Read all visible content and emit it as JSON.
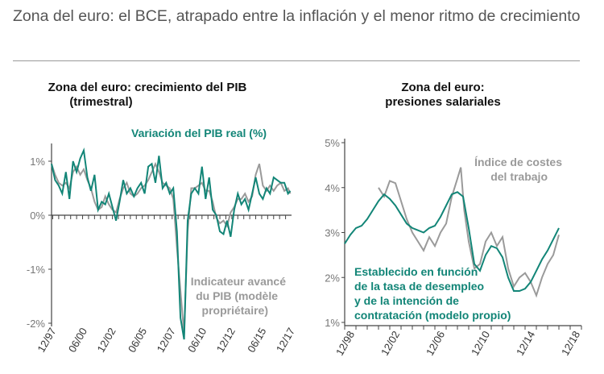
{
  "main_title": "Zona del euro: el BCE, atrapado entre la inflación y el menor ritmo de crecimiento",
  "colors": {
    "teal": "#128577",
    "gray": "#9a9a9a",
    "axis": "#444444",
    "text": "#555555"
  },
  "chart_data": [
    {
      "type": "line",
      "title_line1": "Zona del euro: crecimiento del PIB",
      "title_line2": "(trimestral)",
      "yticks": [
        "1%",
        "0%",
        "-1%",
        "-2%"
      ],
      "ylim": [
        -2,
        1.3
      ],
      "xticks": [
        "12/97",
        "06/00",
        "12/02",
        "06/05",
        "12/07",
        "06/10",
        "12/12",
        "06/15",
        "12/17"
      ],
      "xlim": [
        1997.9,
        2018.0
      ],
      "series": [
        {
          "name": "Variación del PIB real (%)",
          "color": "#128577",
          "points": [
            [
              1997.9,
              0.95
            ],
            [
              1998.2,
              0.65
            ],
            [
              1998.5,
              0.55
            ],
            [
              1998.8,
              0.4
            ],
            [
              1999.1,
              0.8
            ],
            [
              1999.4,
              0.3
            ],
            [
              1999.7,
              1.0
            ],
            [
              2000.0,
              0.8
            ],
            [
              2000.3,
              1.05
            ],
            [
              2000.6,
              1.2
            ],
            [
              2000.9,
              0.7
            ],
            [
              2001.2,
              0.45
            ],
            [
              2001.5,
              0.75
            ],
            [
              2001.8,
              0.1
            ],
            [
              2002.1,
              0.25
            ],
            [
              2002.4,
              0.2
            ],
            [
              2002.7,
              0.4
            ],
            [
              2003.0,
              0.15
            ],
            [
              2003.3,
              -0.1
            ],
            [
              2003.6,
              0.25
            ],
            [
              2003.9,
              0.65
            ],
            [
              2004.2,
              0.4
            ],
            [
              2004.5,
              0.5
            ],
            [
              2004.8,
              0.35
            ],
            [
              2005.1,
              0.5
            ],
            [
              2005.4,
              0.6
            ],
            [
              2005.7,
              0.4
            ],
            [
              2006.0,
              0.9
            ],
            [
              2006.3,
              0.95
            ],
            [
              2006.6,
              0.6
            ],
            [
              2006.9,
              1.1
            ],
            [
              2007.2,
              0.5
            ],
            [
              2007.5,
              0.6
            ],
            [
              2007.8,
              0.4
            ],
            [
              2008.1,
              0.5
            ],
            [
              2008.4,
              -0.3
            ],
            [
              2008.7,
              -1.9
            ],
            [
              2009.0,
              -2.6
            ],
            [
              2009.3,
              -0.1
            ],
            [
              2009.6,
              0.4
            ],
            [
              2009.9,
              0.5
            ],
            [
              2010.2,
              0.4
            ],
            [
              2010.5,
              0.9
            ],
            [
              2010.8,
              0.3
            ],
            [
              2011.1,
              0.7
            ],
            [
              2011.4,
              0.1
            ],
            [
              2011.7,
              0.0
            ],
            [
              2012.0,
              -0.3
            ],
            [
              2012.3,
              -0.35
            ],
            [
              2012.6,
              -0.1
            ],
            [
              2012.9,
              -0.4
            ],
            [
              2013.2,
              0.1
            ],
            [
              2013.5,
              0.4
            ],
            [
              2013.8,
              0.2
            ],
            [
              2014.1,
              0.3
            ],
            [
              2014.4,
              0.1
            ],
            [
              2014.7,
              0.4
            ],
            [
              2015.0,
              0.7
            ],
            [
              2015.3,
              0.4
            ],
            [
              2015.6,
              0.3
            ],
            [
              2015.9,
              0.5
            ],
            [
              2016.2,
              0.4
            ],
            [
              2016.5,
              0.7
            ],
            [
              2016.8,
              0.65
            ],
            [
              2017.1,
              0.6
            ],
            [
              2017.4,
              0.6
            ],
            [
              2017.7,
              0.4
            ],
            [
              2017.9,
              0.45
            ]
          ]
        },
        {
          "name": "Indicateur avancé du PIB (modèle propriétaire)",
          "label_line1": "Indicateur avancé",
          "label_line2": "du PIB (modèle",
          "label_line3": "propriétaire)",
          "color": "#9a9a9a",
          "points": [
            [
              1997.9,
              0.95
            ],
            [
              1998.2,
              0.75
            ],
            [
              1998.5,
              0.6
            ],
            [
              1998.8,
              0.55
            ],
            [
              1999.1,
              0.6
            ],
            [
              1999.4,
              0.5
            ],
            [
              1999.7,
              0.8
            ],
            [
              2000.0,
              0.9
            ],
            [
              2000.3,
              0.75
            ],
            [
              2000.6,
              0.85
            ],
            [
              2000.9,
              0.65
            ],
            [
              2001.2,
              0.5
            ],
            [
              2001.5,
              0.25
            ],
            [
              2001.8,
              0.1
            ],
            [
              2002.1,
              0.15
            ],
            [
              2002.4,
              0.35
            ],
            [
              2002.7,
              0.2
            ],
            [
              2003.0,
              0.1
            ],
            [
              2003.3,
              0.05
            ],
            [
              2003.6,
              0.3
            ],
            [
              2003.9,
              0.5
            ],
            [
              2004.2,
              0.6
            ],
            [
              2004.5,
              0.4
            ],
            [
              2004.8,
              0.35
            ],
            [
              2005.1,
              0.4
            ],
            [
              2005.4,
              0.5
            ],
            [
              2005.7,
              0.55
            ],
            [
              2006.0,
              0.65
            ],
            [
              2006.3,
              0.8
            ],
            [
              2006.6,
              0.95
            ],
            [
              2006.9,
              0.8
            ],
            [
              2007.2,
              0.6
            ],
            [
              2007.5,
              0.55
            ],
            [
              2007.8,
              0.5
            ],
            [
              2008.1,
              0.3
            ],
            [
              2008.4,
              -0.6
            ],
            [
              2008.7,
              -1.4
            ],
            [
              2009.0,
              -2.2
            ],
            [
              2009.3,
              -0.3
            ],
            [
              2009.6,
              0.5
            ],
            [
              2009.9,
              0.5
            ],
            [
              2010.2,
              0.55
            ],
            [
              2010.5,
              0.6
            ],
            [
              2010.8,
              0.45
            ],
            [
              2011.1,
              0.45
            ],
            [
              2011.4,
              0.25
            ],
            [
              2011.7,
              -0.05
            ],
            [
              2012.0,
              -0.15
            ],
            [
              2012.3,
              -0.1
            ],
            [
              2012.6,
              -0.2
            ],
            [
              2012.9,
              0.05
            ],
            [
              2013.2,
              0.15
            ],
            [
              2013.5,
              0.3
            ],
            [
              2013.8,
              0.3
            ],
            [
              2014.1,
              0.4
            ],
            [
              2014.4,
              0.25
            ],
            [
              2014.7,
              0.35
            ],
            [
              2015.0,
              0.75
            ],
            [
              2015.3,
              0.95
            ],
            [
              2015.6,
              0.55
            ],
            [
              2015.9,
              0.45
            ],
            [
              2016.2,
              0.55
            ],
            [
              2016.5,
              0.45
            ],
            [
              2016.8,
              0.55
            ],
            [
              2017.1,
              0.6
            ],
            [
              2017.4,
              0.45
            ],
            [
              2017.7,
              0.5
            ],
            [
              2017.9,
              0.4
            ]
          ]
        }
      ]
    },
    {
      "type": "line",
      "title_line1": "Zona del euro:",
      "title_line2": "presiones salariales",
      "yticks": [
        "5%",
        "4%",
        "3%",
        "2%",
        "1%"
      ],
      "ylim": [
        1,
        5
      ],
      "xticks": [
        "12/98",
        "12/02",
        "12/06",
        "12/10",
        "12/14",
        "12/18"
      ],
      "xlim": [
        1998.0,
        2019.0
      ],
      "series": [
        {
          "name": "Índice de costes del trabajo",
          "label_line1": "Índice de costes",
          "label_line2": "del trabajo",
          "color": "#9a9a9a",
          "points": [
            [
              2001.0,
              4.0
            ],
            [
              2001.5,
              3.8
            ],
            [
              2002.0,
              4.15
            ],
            [
              2002.5,
              4.1
            ],
            [
              2003.0,
              3.7
            ],
            [
              2003.5,
              3.3
            ],
            [
              2004.0,
              3.0
            ],
            [
              2004.5,
              2.8
            ],
            [
              2005.0,
              2.6
            ],
            [
              2005.5,
              2.9
            ],
            [
              2006.0,
              2.7
            ],
            [
              2006.5,
              3.0
            ],
            [
              2007.0,
              3.2
            ],
            [
              2007.5,
              3.8
            ],
            [
              2008.0,
              4.2
            ],
            [
              2008.3,
              4.45
            ],
            [
              2008.6,
              3.5
            ],
            [
              2009.0,
              2.8
            ],
            [
              2009.5,
              2.2
            ],
            [
              2010.0,
              2.3
            ],
            [
              2010.5,
              2.8
            ],
            [
              2011.0,
              3.0
            ],
            [
              2011.5,
              2.7
            ],
            [
              2012.0,
              2.9
            ],
            [
              2012.5,
              2.2
            ],
            [
              2013.0,
              1.8
            ],
            [
              2013.5,
              2.0
            ],
            [
              2014.0,
              2.1
            ],
            [
              2014.5,
              1.9
            ],
            [
              2015.0,
              1.6
            ],
            [
              2015.5,
              2.0
            ],
            [
              2016.0,
              2.3
            ],
            [
              2016.5,
              2.5
            ],
            [
              2017.0,
              2.95
            ]
          ]
        },
        {
          "name": "Establecido en función de la tasa de desempleo y de la intención de contratación (modelo propio)",
          "label_line1": "Establecido en función",
          "label_line2": "de la tasa de desempleo",
          "label_line3": "y de la intención de",
          "label_line4": "contratación (modelo propio)",
          "color": "#128577",
          "points": [
            [
              1998.0,
              2.75
            ],
            [
              1998.5,
              2.95
            ],
            [
              1999.0,
              3.1
            ],
            [
              1999.5,
              3.15
            ],
            [
              2000.0,
              3.3
            ],
            [
              2000.5,
              3.5
            ],
            [
              2001.0,
              3.7
            ],
            [
              2001.5,
              3.85
            ],
            [
              2002.0,
              3.75
            ],
            [
              2002.5,
              3.6
            ],
            [
              2003.0,
              3.4
            ],
            [
              2003.5,
              3.2
            ],
            [
              2004.0,
              3.1
            ],
            [
              2004.5,
              3.05
            ],
            [
              2005.0,
              3.0
            ],
            [
              2005.5,
              3.1
            ],
            [
              2006.0,
              3.15
            ],
            [
              2006.5,
              3.35
            ],
            [
              2007.0,
              3.6
            ],
            [
              2007.5,
              3.85
            ],
            [
              2008.0,
              3.9
            ],
            [
              2008.5,
              3.8
            ],
            [
              2009.0,
              3.1
            ],
            [
              2009.5,
              2.3
            ],
            [
              2010.0,
              2.15
            ],
            [
              2010.5,
              2.5
            ],
            [
              2011.0,
              2.7
            ],
            [
              2011.5,
              2.65
            ],
            [
              2012.0,
              2.45
            ],
            [
              2012.5,
              2.0
            ],
            [
              2013.0,
              1.7
            ],
            [
              2013.5,
              1.7
            ],
            [
              2014.0,
              1.75
            ],
            [
              2014.5,
              1.9
            ],
            [
              2015.0,
              2.15
            ],
            [
              2015.5,
              2.4
            ],
            [
              2016.0,
              2.6
            ],
            [
              2016.5,
              2.85
            ],
            [
              2017.0,
              3.1
            ]
          ]
        }
      ]
    }
  ]
}
